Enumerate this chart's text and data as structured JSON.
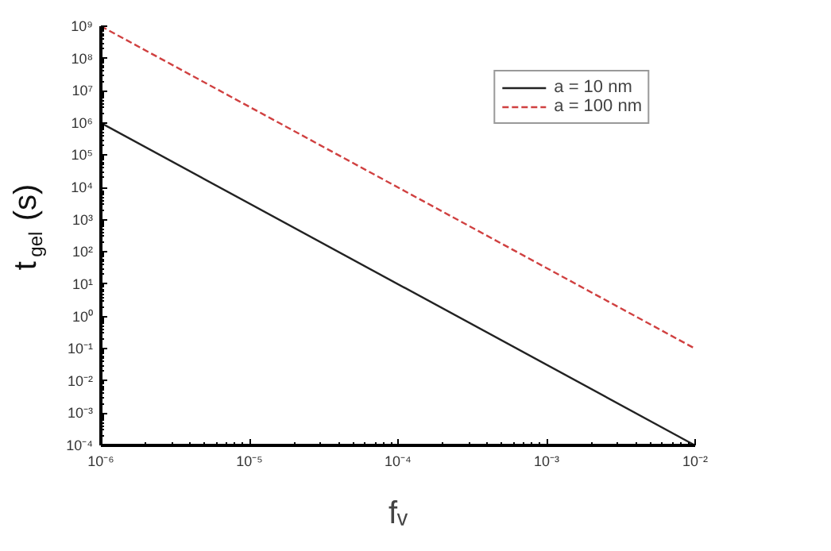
{
  "chart_data": {
    "type": "line",
    "xlabel": "fᵥ",
    "ylabel": "t$_{gel}$ (s)",
    "log": "xy",
    "xlim": [
      1e-06,
      0.01
    ],
    "ylim": [
      0.0001,
      1000000000.0
    ],
    "xticks": [
      {
        "value": 1e-06,
        "label": "10⁻⁶"
      },
      {
        "value": 1e-05,
        "label": "10⁻⁵"
      },
      {
        "value": 0.0001,
        "label": "10⁻⁴"
      },
      {
        "value": 0.001,
        "label": "10⁻³"
      },
      {
        "value": 0.01,
        "label": "10⁻²"
      }
    ],
    "yticks": [
      {
        "value": 0.0001,
        "label": "10⁻⁴"
      },
      {
        "value": 0.001,
        "label": "10⁻³"
      },
      {
        "value": 0.01,
        "label": "10⁻²"
      },
      {
        "value": 0.1,
        "label": "10⁻¹"
      },
      {
        "value": 1,
        "label": "10⁰"
      },
      {
        "value": 10,
        "label": "10¹"
      },
      {
        "value": 100,
        "label": "10²"
      },
      {
        "value": 1000,
        "label": "10³"
      },
      {
        "value": 10000,
        "label": "10⁴"
      },
      {
        "value": 100000,
        "label": "10⁵"
      },
      {
        "value": 1000000,
        "label": "10⁶"
      },
      {
        "value": 10000000,
        "label": "10⁷"
      },
      {
        "value": 100000000,
        "label": "10⁸"
      },
      {
        "value": 1000000000,
        "label": "10⁹"
      }
    ],
    "x": [
      1e-06,
      0.01
    ],
    "series": [
      {
        "name": "a = 10 nm",
        "color": "#222222",
        "line_style": "solid",
        "values": [
          1000000,
          0.0001
        ]
      },
      {
        "name": "a = 100 nm",
        "color": "#d04040",
        "line_style": "dashed",
        "values": [
          1000000000,
          0.1
        ]
      }
    ],
    "grid": false,
    "legend": "top right",
    "marker": "none"
  }
}
